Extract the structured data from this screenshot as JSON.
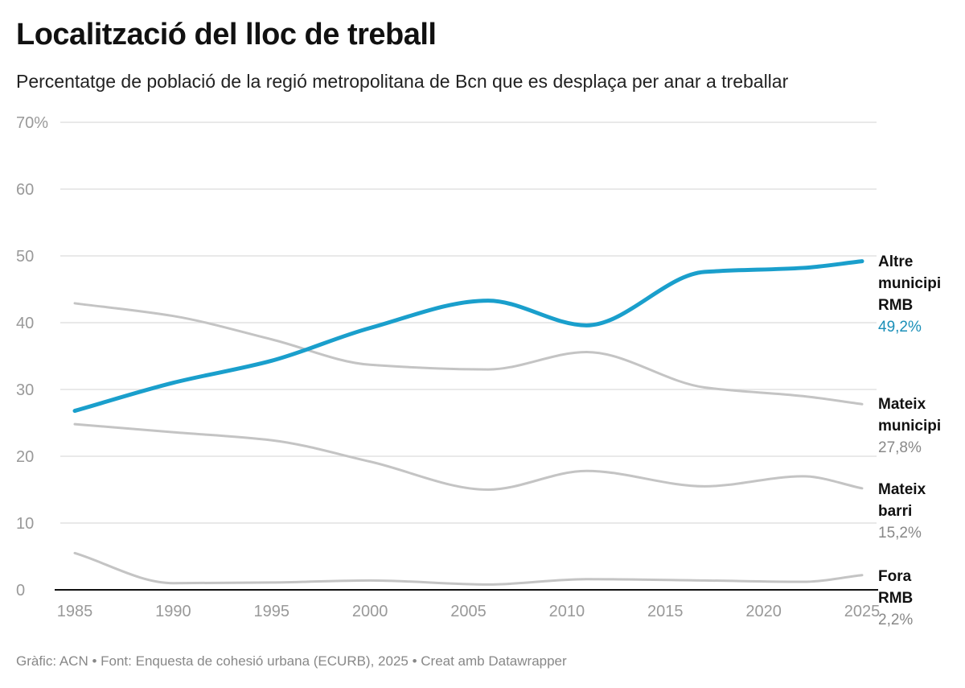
{
  "title": "Localització del lloc de treball",
  "subtitle": "Percentatge de població de la regió metropolitana de Bcn que es desplaça per anar a treballar",
  "footer": "Gràfic: ACN • Font: Enquesta de cohesió urbana (ECURB), 2025 • Creat amb Datawrapper",
  "chart_data": {
    "type": "line",
    "title": "Localització del lloc de treball",
    "xlim": [
      1985,
      2025
    ],
    "ylim": [
      0,
      70
    ],
    "x_ticks": [
      "1985",
      "1990",
      "1995",
      "2000",
      "2005",
      "2010",
      "2015",
      "2020",
      "2025"
    ],
    "y_ticks": [
      "0",
      "10",
      "20",
      "30",
      "40",
      "50",
      "60",
      "70%"
    ],
    "grid": true,
    "legend": "direct labels right",
    "x": [
      1985,
      1990,
      1995,
      2000,
      2006,
      2011,
      2017,
      2022,
      2025
    ],
    "series": [
      {
        "name": "Altre municipi RMB",
        "label_lines": [
          "Altre",
          "municipi",
          "RMB"
        ],
        "end_label": "49,2%",
        "color": "#1a9fcc",
        "highlight": true,
        "values": [
          26.8,
          31.0,
          34.3,
          39.2,
          43.3,
          39.6,
          47.6,
          48.2,
          49.2
        ]
      },
      {
        "name": "Mateix municipi",
        "label_lines": [
          "Mateix",
          "municipi"
        ],
        "end_label": "27,8%",
        "color": "#c4c4c4",
        "values": [
          42.9,
          41.0,
          37.5,
          33.7,
          33.0,
          35.6,
          30.3,
          29.0,
          27.8
        ]
      },
      {
        "name": "Mateix barri",
        "label_lines": [
          "Mateix",
          "barri"
        ],
        "end_label": "15,2%",
        "color": "#c4c4c4",
        "values": [
          24.8,
          23.6,
          22.4,
          19.2,
          15.0,
          17.8,
          15.5,
          17.0,
          15.2
        ]
      },
      {
        "name": "Fora RMB",
        "label_lines": [
          "Fora",
          "RMB"
        ],
        "end_label": "2,2%",
        "color": "#c4c4c4",
        "values": [
          5.5,
          1.0,
          1.1,
          1.4,
          0.8,
          1.6,
          1.4,
          1.2,
          2.2
        ]
      }
    ],
    "value_label_colors": {
      "highlight": "#1a8fb8",
      "default": "#888888"
    }
  }
}
